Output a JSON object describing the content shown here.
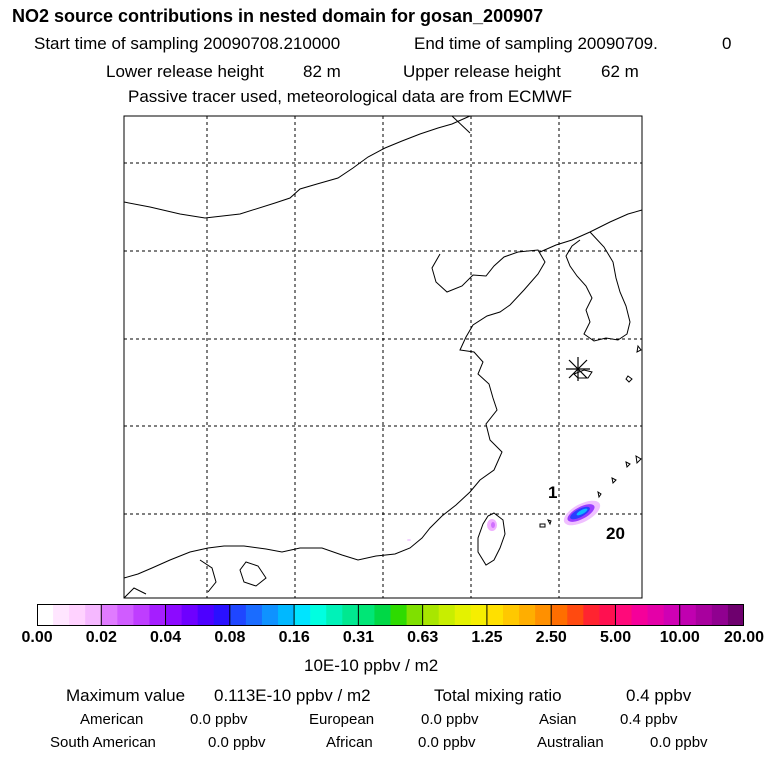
{
  "header": {
    "title": "NO2 source contributions in nested domain for gosan_200907",
    "start_label": "Start time of sampling 20090708.210000",
    "end_label": "End time of sampling 20090709.",
    "end_value": "0",
    "lower_label": "Lower release height",
    "lower_value": "82 m",
    "upper_label": "Upper release height",
    "upper_value": "62 m",
    "tracer_note": "Passive tracer used, meteorological data are from ECMWF"
  },
  "map": {
    "annotations": {
      "label_1": "1",
      "label_20": "20"
    }
  },
  "colorbar": {
    "unit": "10E-10 ppbv / m2",
    "tick_labels": [
      "0.00",
      "0.02",
      "0.04",
      "0.08",
      "0.16",
      "0.31",
      "0.63",
      "1.25",
      "2.50",
      "5.00",
      "10.00",
      "20.00"
    ],
    "colors": [
      "#ffffff",
      "#ffe6ff",
      "#ffd2ff",
      "#f5b8ff",
      "#e07bff",
      "#d05cff",
      "#bf3dff",
      "#a51eff",
      "#8c0aff",
      "#6e00ff",
      "#4d00ff",
      "#2a10ff",
      "#1f46ff",
      "#1a6cff",
      "#0f92ff",
      "#00b8ff",
      "#00e4ff",
      "#00ffe0",
      "#00f2b8",
      "#00e890",
      "#00e676",
      "#00d846",
      "#2edb00",
      "#7fe000",
      "#a8e600",
      "#c8ee00",
      "#e4f200",
      "#f6ee00",
      "#ffe000",
      "#ffc800",
      "#ffae00",
      "#ff9000",
      "#ff6e00",
      "#ff4a10",
      "#ff2430",
      "#ff1050",
      "#ff0a7a",
      "#f5009a",
      "#e400a8",
      "#cf00b4",
      "#c000b0",
      "#a8009e",
      "#900090",
      "#6e006e"
    ]
  },
  "stats": {
    "max_label": "Maximum value",
    "max_value": "0.113E-10 ppbv / m2",
    "total_label": "Total mixing ratio",
    "total_value": "0.4 ppbv",
    "regions": [
      {
        "name": "American",
        "value": "0.0 ppbv"
      },
      {
        "name": "European",
        "value": "0.0 ppbv"
      },
      {
        "name": "Asian",
        "value": "0.4 ppbv"
      },
      {
        "name": "South American",
        "value": "0.0 ppbv"
      },
      {
        "name": "African",
        "value": "0.0 ppbv"
      },
      {
        "name": "Australian",
        "value": "0.0 ppbv"
      }
    ]
  }
}
